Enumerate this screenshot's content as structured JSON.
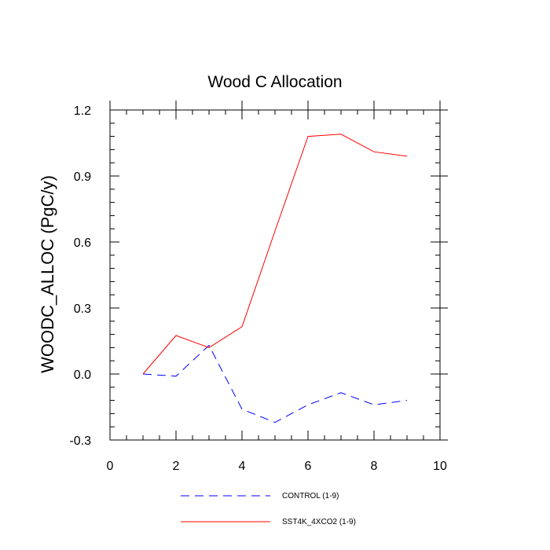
{
  "chart_data": {
    "type": "line",
    "title": "Wood C Allocation",
    "xlabel": "",
    "ylabel": "WOODC_ALLOC  (PgC/y)",
    "xlim": [
      0,
      10
    ],
    "ylim": [
      -0.3,
      1.2
    ],
    "xticks": [
      "0",
      "2",
      "4",
      "6",
      "8",
      "10"
    ],
    "yticks": [
      "-0.3",
      "0.0",
      "0.3",
      "0.6",
      "0.9",
      "1.2"
    ],
    "grid": false,
    "legend_position": "bottom",
    "series": [
      {
        "name": "CONTROL (1-9)",
        "color": "#0000ff",
        "style": "dashed",
        "x": [
          1,
          2,
          3,
          4,
          5,
          6,
          7,
          8,
          9
        ],
        "y": [
          0.0,
          -0.01,
          0.13,
          -0.16,
          -0.22,
          -0.14,
          -0.085,
          -0.14,
          -0.12
        ]
      },
      {
        "name": "SST4K_4XCO2 (1-9)",
        "color": "#ff0000",
        "style": "solid",
        "x": [
          1,
          2,
          3,
          4,
          5,
          6,
          7,
          8,
          9
        ],
        "y": [
          0.0,
          0.175,
          0.12,
          0.215,
          0.65,
          1.08,
          1.09,
          1.01,
          0.99
        ]
      }
    ]
  }
}
